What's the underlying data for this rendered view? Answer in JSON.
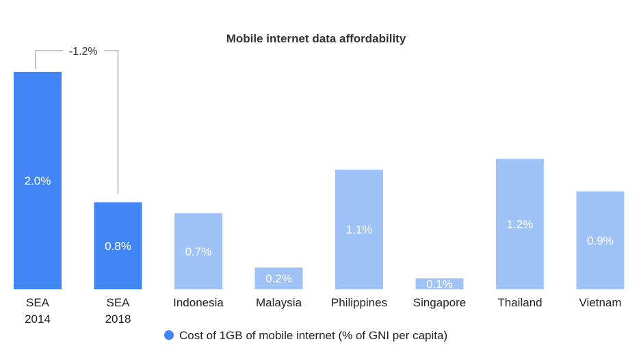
{
  "chart_data": {
    "type": "bar",
    "title": "Mobile internet data affordability",
    "categories": [
      [
        "SEA",
        "2014"
      ],
      [
        "SEA",
        "2018"
      ],
      [
        "Indonesia"
      ],
      [
        "Malaysia"
      ],
      [
        "Philippines"
      ],
      [
        "Singapore"
      ],
      [
        "Thailand"
      ],
      [
        "Vietnam"
      ]
    ],
    "values": [
      2.0,
      0.8,
      0.7,
      0.2,
      1.1,
      0.1,
      1.2,
      0.9
    ],
    "value_labels": [
      "2.0%",
      "0.8%",
      "0.7%",
      "0.2%",
      "1.1%",
      "0.1%",
      "1.2%",
      "0.9%"
    ],
    "bar_colors": [
      "#4285f4",
      "#4285f4",
      "#a0c3f7",
      "#a0c3f7",
      "#a0c3f7",
      "#a0c3f7",
      "#a0c3f7",
      "#a0c3f7"
    ],
    "series": [
      {
        "name": "Cost of 1GB of mobile internet (% of GNI per capita)",
        "color": "#4285f4"
      }
    ],
    "annotation": {
      "text": "-1.2%",
      "from_index": 0,
      "to_index": 1
    },
    "ylim": [
      0,
      2.0
    ],
    "grid": false,
    "legend_position": "bottom-center"
  }
}
